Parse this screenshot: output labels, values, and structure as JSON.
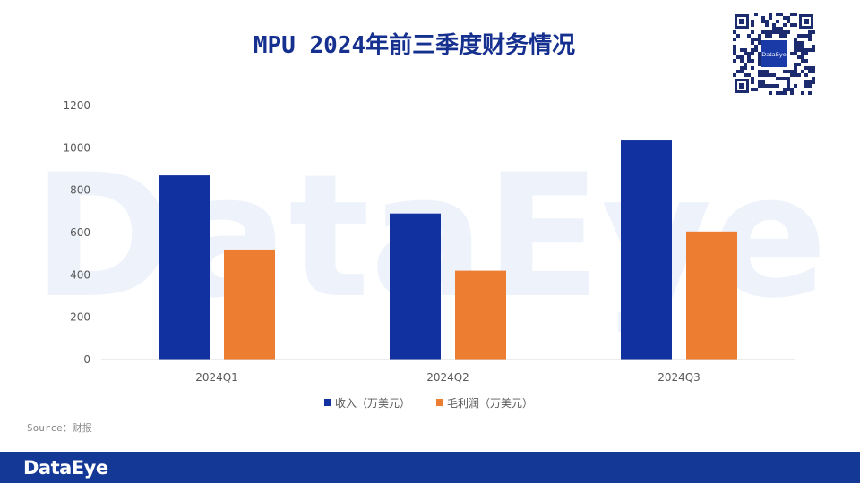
{
  "title": "MPU 2024年前三季度财务情况",
  "source": "Source：财报",
  "footer_logo": "DataEye",
  "watermark": "DataEye",
  "qr_label": "DataEye",
  "colors": {
    "revenue": "#1231a0",
    "gross_profit": "#ed7d31",
    "footer": "#143896",
    "title": "#16308f"
  },
  "chart_data": {
    "type": "bar",
    "title": "MPU 2024年前三季度财务情况",
    "categories": [
      "2024Q1",
      "2024Q2",
      "2024Q3"
    ],
    "series": [
      {
        "name": "收入（万美元）",
        "values": [
          870,
          690,
          1035
        ]
      },
      {
        "name": "毛利润（万美元）",
        "values": [
          520,
          420,
          605
        ]
      }
    ],
    "yticks": [
      0,
      200,
      400,
      600,
      800,
      1000,
      1200
    ],
    "ylim": [
      0,
      1200
    ],
    "xlabel": "",
    "ylabel": "",
    "legend": "bottom",
    "grid": false
  }
}
